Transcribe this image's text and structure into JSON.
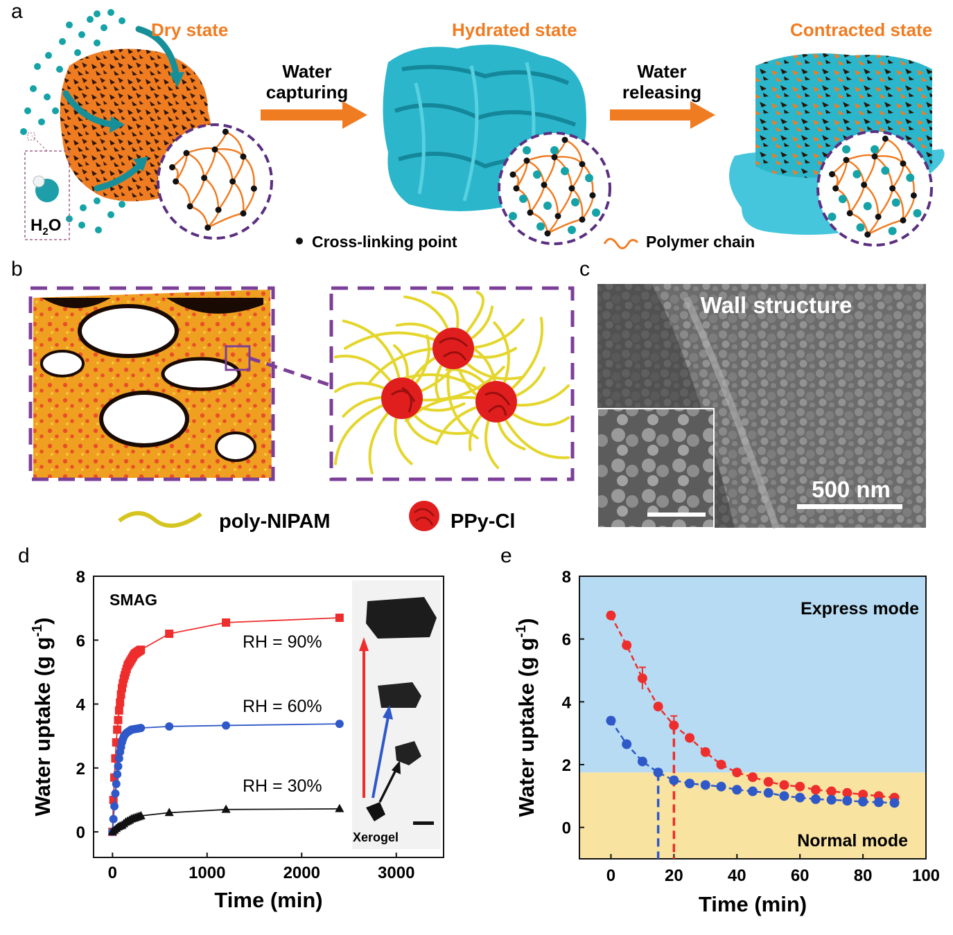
{
  "panel_labels": {
    "a": "a",
    "b": "b",
    "c": "c",
    "d": "d",
    "e": "e"
  },
  "colors": {
    "orange": "#f07c22",
    "teal": "#1fb3c8",
    "dot_teal": "#15a3a7",
    "purple": "#7b3f98",
    "red": "#ee2d2d",
    "blue": "#2f58c8",
    "express_bg": "#b6dbf2",
    "normal_bg": "#f8e3a0"
  },
  "panel_a": {
    "states": [
      "Dry state",
      "Hydrated state",
      "Contracted state"
    ],
    "arrow1": [
      "Water",
      "capturing"
    ],
    "arrow2": [
      "Water",
      "releasing"
    ],
    "h2o_label": "H",
    "h2o_sub": "2",
    "h2o_tail": "O",
    "legend_crosslink": "Cross-linking point",
    "legend_polymer": "Polymer chain"
  },
  "panel_b": {
    "legend_poly": "poly-NIPAM",
    "legend_ppy": "PPy-Cl"
  },
  "panel_c": {
    "title": "Wall structure",
    "scale_bar": "500 nm"
  },
  "chart_data": [
    {
      "panel": "d",
      "type": "line",
      "title": "",
      "annotation": "SMAG",
      "xlabel": "Time (min)",
      "ylabel": "Water uptake (g g⁻¹)",
      "ylabel_main": "Water uptake (g g",
      "ylabel_sup": "-1",
      "ylabel_close": ")",
      "xlim": [
        -200,
        3500
      ],
      "ylim": [
        -0.8,
        8
      ],
      "xticks": [
        0,
        1000,
        2000,
        3000
      ],
      "xtick_labels": [
        "0",
        "1000",
        "2000",
        "3000"
      ],
      "yticks": [
        0,
        2,
        4,
        6,
        8
      ],
      "ytick_labels": [
        "0",
        "2",
        "4",
        "6",
        "8"
      ],
      "series": [
        {
          "name": "RH = 90%",
          "color": "#ee2d2d",
          "marker": "square",
          "x": [
            0,
            10,
            20,
            30,
            40,
            50,
            60,
            70,
            80,
            90,
            100,
            110,
            120,
            130,
            140,
            150,
            160,
            170,
            180,
            190,
            200,
            210,
            220,
            230,
            240,
            250,
            260,
            270,
            280,
            290,
            300,
            600,
            1200,
            2400
          ],
          "y": [
            0,
            1.0,
            1.7,
            2.3,
            2.8,
            3.2,
            3.5,
            3.8,
            4.05,
            4.3,
            4.5,
            4.65,
            4.8,
            4.9,
            5.0,
            5.1,
            5.2,
            5.25,
            5.3,
            5.35,
            5.4,
            5.45,
            5.5,
            5.55,
            5.58,
            5.6,
            5.62,
            5.64,
            5.66,
            5.68,
            5.7,
            6.2,
            6.55,
            6.7
          ]
        },
        {
          "name": "RH = 60%",
          "color": "#2f58c8",
          "marker": "circle",
          "x": [
            0,
            10,
            20,
            30,
            40,
            50,
            60,
            70,
            80,
            90,
            100,
            110,
            120,
            130,
            140,
            150,
            160,
            170,
            180,
            190,
            200,
            220,
            240,
            260,
            280,
            300,
            600,
            1200,
            2400
          ],
          "y": [
            0,
            0.4,
            0.8,
            1.2,
            1.5,
            1.8,
            2.05,
            2.3,
            2.5,
            2.65,
            2.8,
            2.9,
            2.98,
            3.03,
            3.07,
            3.1,
            3.12,
            3.14,
            3.16,
            3.18,
            3.2,
            3.21,
            3.22,
            3.23,
            3.24,
            3.25,
            3.3,
            3.33,
            3.38
          ]
        },
        {
          "name": "RH = 30%",
          "color": "#111111",
          "marker": "triangle",
          "x": [
            0,
            20,
            40,
            60,
            80,
            100,
            120,
            140,
            160,
            180,
            200,
            220,
            240,
            260,
            280,
            300,
            600,
            1200,
            2400
          ],
          "y": [
            0,
            0.05,
            0.1,
            0.15,
            0.18,
            0.2,
            0.25,
            0.3,
            0.33,
            0.36,
            0.4,
            0.42,
            0.44,
            0.46,
            0.48,
            0.5,
            0.6,
            0.7,
            0.72
          ]
        }
      ],
      "inset": {
        "caption": "Xerogel"
      }
    },
    {
      "panel": "e",
      "type": "line",
      "title": "",
      "xlabel": "Time (min)",
      "ylabel": "Water uptake (g g⁻¹)",
      "ylabel_main": "Water uptake (g g",
      "ylabel_sup": "-1",
      "ylabel_close": ")",
      "xlim": [
        -10,
        100
      ],
      "ylim": [
        -1,
        8
      ],
      "xticks": [
        0,
        20,
        40,
        60,
        80,
        100
      ],
      "xtick_labels": [
        "0",
        "20",
        "40",
        "60",
        "80",
        "100"
      ],
      "yticks": [
        0,
        2,
        4,
        6,
        8
      ],
      "ytick_labels": [
        "0",
        "2",
        "4",
        "6",
        "8"
      ],
      "threshold": 1.75,
      "region_labels": {
        "upper": "Express mode",
        "lower": "Normal mode"
      },
      "series": [
        {
          "name": "",
          "color": "#ee2d2d",
          "x": [
            0,
            5,
            10,
            15,
            20,
            25,
            30,
            35,
            40,
            45,
            50,
            55,
            60,
            65,
            70,
            75,
            80,
            85,
            90
          ],
          "y": [
            6.75,
            5.8,
            4.75,
            3.85,
            3.25,
            2.85,
            2.4,
            2.0,
            1.75,
            1.6,
            1.45,
            1.35,
            1.3,
            1.2,
            1.15,
            1.1,
            1.05,
            1.0,
            0.95
          ],
          "err": [
            0.1,
            0.1,
            0.35,
            0.1,
            0.3,
            0.1,
            0.1,
            0.1,
            0.1,
            0.1,
            0.1,
            0.05,
            0.05,
            0.05,
            0.05,
            0.05,
            0.05,
            0.05,
            0.05
          ],
          "drop_x": 20
        },
        {
          "name": "",
          "color": "#2f58c8",
          "x": [
            0,
            5,
            10,
            15,
            20,
            25,
            30,
            35,
            40,
            45,
            50,
            55,
            60,
            65,
            70,
            75,
            80,
            85,
            90
          ],
          "y": [
            3.4,
            2.65,
            2.1,
            1.75,
            1.5,
            1.4,
            1.35,
            1.3,
            1.2,
            1.15,
            1.1,
            1.0,
            0.95,
            0.9,
            0.88,
            0.85,
            0.82,
            0.8,
            0.78
          ],
          "err": [
            0.1,
            0.1,
            0.1,
            0.1,
            0.1,
            0.05,
            0.05,
            0.05,
            0.05,
            0.05,
            0.05,
            0.05,
            0.05,
            0.05,
            0.05,
            0.05,
            0.05,
            0.05,
            0.05
          ],
          "drop_x": 15
        }
      ]
    }
  ]
}
